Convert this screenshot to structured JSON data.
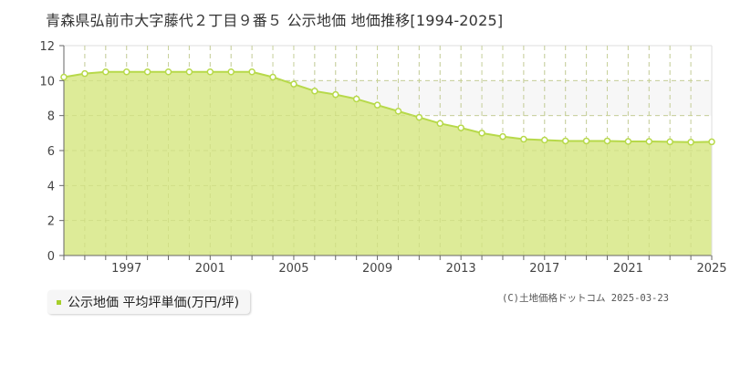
{
  "title": "青森県弘前市大字藤代２丁目９番５ 公示地価 地価推移[1994-2025]",
  "legend": {
    "label": "公示地価 平均坪単価(万円/坪)",
    "color": "#a6cf2b"
  },
  "credit": "(C)土地価格ドットコム 2025-03-23",
  "colors": {
    "fill": "#dbea92",
    "line": "#b7d94a",
    "marker_fill": "#ffffff",
    "grid": "#c8c8c8",
    "axis": "#666666"
  },
  "chart_data": {
    "type": "area",
    "title": "青森県弘前市大字藤代２丁目９番５ 公示地価 地価推移[1994-2025]",
    "xlabel": "",
    "ylabel": "",
    "series": [
      {
        "name": "公示地価 平均坪単価(万円/坪)",
        "x": [
          1994,
          1995,
          1996,
          1997,
          1998,
          1999,
          2000,
          2001,
          2002,
          2003,
          2004,
          2005,
          2006,
          2007,
          2008,
          2009,
          2010,
          2011,
          2012,
          2013,
          2014,
          2015,
          2016,
          2017,
          2018,
          2019,
          2020,
          2021,
          2022,
          2023,
          2024,
          2025
        ],
        "values": [
          10.2,
          10.4,
          10.5,
          10.5,
          10.5,
          10.5,
          10.5,
          10.5,
          10.5,
          10.5,
          10.2,
          9.8,
          9.4,
          9.2,
          8.95,
          8.6,
          8.25,
          7.9,
          7.55,
          7.3,
          7.0,
          6.8,
          6.65,
          6.6,
          6.55,
          6.55,
          6.55,
          6.52,
          6.52,
          6.5,
          6.48,
          6.5
        ]
      }
    ],
    "x_tick_labels": [
      "1997",
      "2001",
      "2005",
      "2009",
      "2013",
      "2017",
      "2021",
      "2025"
    ],
    "y_tick_labels": [
      "0",
      "2",
      "4",
      "6",
      "8",
      "10",
      "12"
    ],
    "xlim": [
      1994,
      2025
    ],
    "ylim": [
      0,
      12
    ],
    "grid": true,
    "legend_position": "bottom-left"
  }
}
